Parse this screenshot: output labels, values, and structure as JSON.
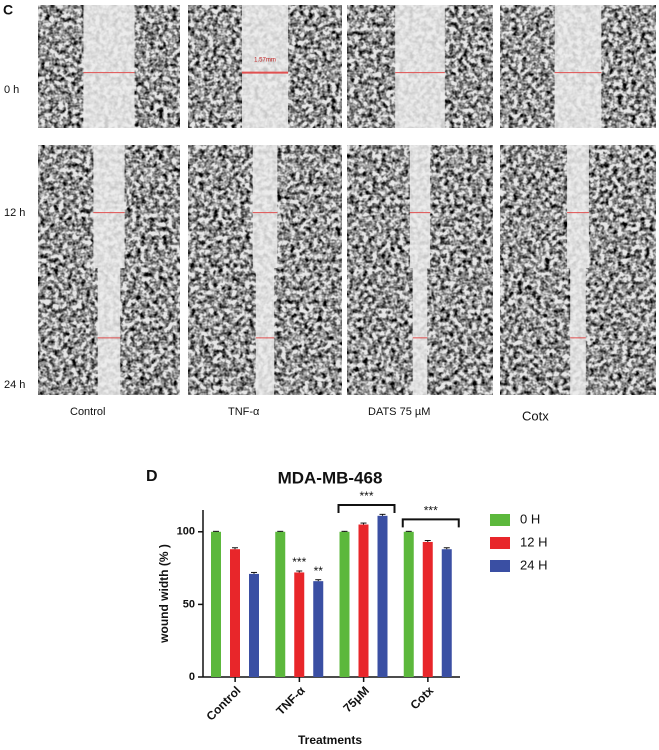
{
  "figure_c": {
    "panel_label": "C",
    "row_labels": [
      "0 h",
      "12 h",
      "24 h"
    ],
    "column_labels": [
      "Control",
      "TNF-α",
      "DATS 75 µM",
      "Cotx"
    ],
    "scale_label": "1.57mm"
  },
  "chart_data": {
    "type": "bar",
    "panel_label": "D",
    "title": "MDA-MB-468",
    "x_label": "Treatments",
    "y_label": "wound width (% )",
    "categories": [
      "Control",
      "TNF-α",
      "75μM",
      "Cotx"
    ],
    "series": [
      {
        "name": "0 H",
        "color": "#5cb83c",
        "values": [
          100,
          100,
          100,
          100
        ],
        "errors": [
          0.3,
          0.3,
          0.3,
          0.3
        ]
      },
      {
        "name": "12 H",
        "color": "#e8262a",
        "values": [
          88,
          72,
          105,
          93
        ],
        "errors": [
          1,
          1,
          1,
          1
        ]
      },
      {
        "name": "24 H",
        "color": "#3a4fa3",
        "values": [
          71,
          66,
          111,
          88
        ],
        "errors": [
          1,
          1,
          1,
          1
        ]
      }
    ],
    "annotations": [
      "***",
      "**",
      "***",
      "***"
    ],
    "ylim": [
      0,
      115
    ],
    "yticks": [
      0,
      50,
      100
    ],
    "legend": "right"
  }
}
